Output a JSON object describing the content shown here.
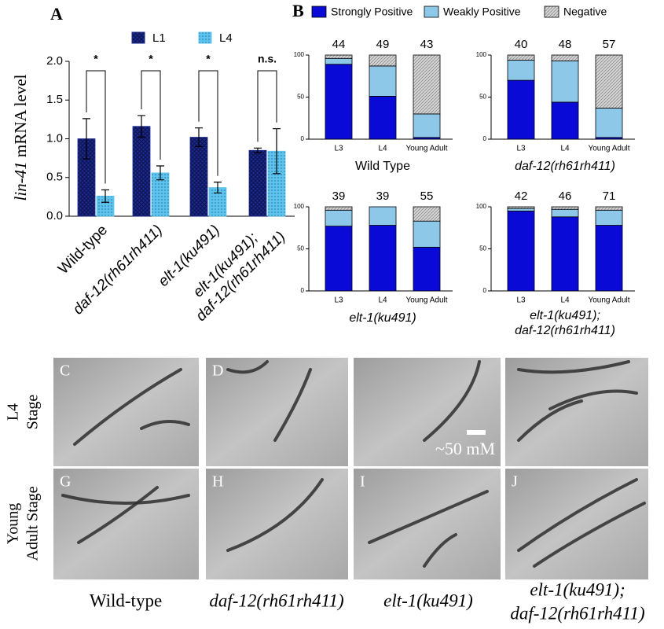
{
  "chart_data": [
    {
      "type": "bar",
      "panel": "A",
      "ylabel": {
        "gene": "lin-41",
        "text": "mRNA level"
      },
      "categories": [
        [
          "Wild-type"
        ],
        [
          "daf-12(rh61rh411)"
        ],
        [
          "elt-1(ku491)"
        ],
        [
          "elt-1(ku491);",
          "daf-12(rh61rh411)"
        ]
      ],
      "series": [
        {
          "name": "L1",
          "color": "#1c2a8c",
          "values": [
            1.0,
            1.16,
            1.02,
            0.85
          ],
          "errors": [
            0.26,
            0.14,
            0.12,
            0.03
          ]
        },
        {
          "name": "L4",
          "color": "#5ec4ee",
          "values": [
            0.26,
            0.56,
            0.37,
            0.84
          ],
          "errors": [
            0.08,
            0.09,
            0.07,
            0.29
          ]
        }
      ],
      "significance": [
        "*",
        "*",
        "*",
        "n.s."
      ],
      "ylim": [
        0,
        2
      ],
      "yticks": [
        {
          "value": 0,
          "label": "0.0"
        },
        {
          "value": 0.5,
          "label": "0.5"
        },
        {
          "value": 1,
          "label": "1.0"
        },
        {
          "value": 1.5,
          "label": "1.5"
        },
        {
          "value": 2,
          "label": "2.0"
        }
      ]
    },
    {
      "type": "stacked_bar",
      "panel": "B",
      "title": [
        "Wild Type"
      ],
      "title_italic": false,
      "categories": [
        "L3",
        "L4",
        "Young Adult"
      ],
      "n": [
        44,
        49,
        43
      ],
      "series": [
        {
          "name": "Strongly Positive",
          "color": "#0a0ad6",
          "values": [
            89,
            51,
            2
          ]
        },
        {
          "name": "Weakly Positive",
          "color": "#8ec8e8",
          "values": [
            7,
            36,
            28
          ]
        },
        {
          "name": "Negative",
          "color": "#bdbdbd",
          "values": [
            4,
            13,
            70
          ]
        }
      ],
      "ylim": [
        0,
        100
      ],
      "yticks": [
        0,
        50,
        100
      ]
    },
    {
      "type": "stacked_bar",
      "title": [
        "daf-12(rh61rh411)"
      ],
      "title_italic": true,
      "categories": [
        "L3",
        "L4",
        "Young Adult"
      ],
      "n": [
        40,
        48,
        57
      ],
      "series": [
        {
          "color": "#0a0ad6",
          "values": [
            70,
            44,
            2
          ]
        },
        {
          "color": "#8ec8e8",
          "values": [
            24,
            49,
            35
          ]
        },
        {
          "color": "#bdbdbd",
          "values": [
            6,
            7,
            63
          ]
        }
      ],
      "ylim": [
        0,
        100
      ],
      "yticks": [
        0,
        50,
        100
      ]
    },
    {
      "type": "stacked_bar",
      "title": [
        "elt-1(ku491)"
      ],
      "title_italic": true,
      "categories": [
        "L3",
        "L4",
        "Young Adult"
      ],
      "n": [
        39,
        39,
        55
      ],
      "series": [
        {
          "color": "#0a0ad6",
          "values": [
            77,
            78,
            52
          ]
        },
        {
          "color": "#8ec8e8",
          "values": [
            19,
            22,
            31
          ]
        },
        {
          "color": "#bdbdbd",
          "values": [
            4,
            0,
            17
          ]
        }
      ],
      "ylim": [
        0,
        100
      ],
      "yticks": [
        0,
        50,
        100
      ]
    },
    {
      "type": "stacked_bar",
      "title": [
        "elt-1(ku491);",
        "daf-12(rh61rh411)"
      ],
      "title_italic": true,
      "categories": [
        "L3",
        "L4",
        "Young Adult"
      ],
      "n": [
        42,
        46,
        71
      ],
      "series": [
        {
          "color": "#0a0ad6",
          "values": [
            95,
            88,
            78
          ]
        },
        {
          "color": "#8ec8e8",
          "values": [
            3,
            9,
            18
          ]
        },
        {
          "color": "#bdbdbd",
          "values": [
            2,
            3,
            4
          ]
        }
      ],
      "ylim": [
        0,
        100
      ],
      "yticks": [
        0,
        50,
        100
      ]
    }
  ],
  "images": {
    "row_labels": [
      [
        "L4",
        "Stage"
      ],
      [
        "Young",
        "Adult Stage"
      ]
    ],
    "letters": [
      [
        "C",
        "D",
        null,
        null
      ],
      [
        "G",
        "H",
        "I",
        "J"
      ]
    ],
    "scale_bar": "~50 mM",
    "column_labels": [
      [
        "Wild-type"
      ],
      [
        "daf-12(rh61rh411)"
      ],
      [
        "elt-1(ku491)"
      ],
      [
        "elt-1(ku491);",
        "daf-12(rh61rh411)"
      ]
    ]
  }
}
